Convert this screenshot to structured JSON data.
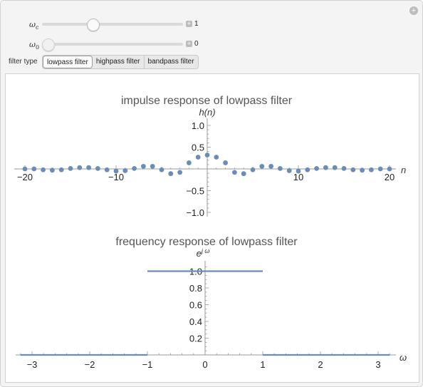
{
  "controls": {
    "omega_c": {
      "label": "ω",
      "sub": "c",
      "value": "1",
      "fraction": 0.36
    },
    "omega_0": {
      "label": "ω",
      "sub": "0",
      "value": "0",
      "fraction": 0.0
    },
    "filter_type_label": "filter type",
    "filter_options": [
      "lowpass filter",
      "highpass filter",
      "bandpass filter"
    ],
    "selected_filter": "lowpass filter"
  },
  "chart_data": [
    {
      "type": "scatter",
      "title": "impulse response of lowpass filter",
      "ylabel": "h(n)",
      "xlabel": "n",
      "xlim": [
        -20,
        20
      ],
      "ylim": [
        -1.0,
        1.0
      ],
      "xticks": [
        "−20",
        "−10",
        "10",
        "20"
      ],
      "yticks": [
        "1.0",
        "0.5",
        "−0.5",
        "−1.0"
      ],
      "color": "#6a8db8",
      "x": [
        -20,
        -19,
        -18,
        -17,
        -16,
        -15,
        -14,
        -13,
        -12,
        -11,
        -10,
        -9,
        -8,
        -7,
        -6,
        -5,
        -4,
        -3,
        -2,
        -1,
        0,
        1,
        2,
        3,
        4,
        5,
        6,
        7,
        8,
        9,
        10,
        11,
        12,
        13,
        14,
        15,
        16,
        17,
        18,
        19,
        20
      ],
      "y": [
        0.0,
        -0.0,
        -0.02,
        -0.03,
        -0.02,
        0.01,
        0.03,
        0.03,
        0.01,
        -0.02,
        -0.05,
        -0.04,
        0.01,
        0.06,
        0.06,
        -0.02,
        -0.11,
        -0.08,
        0.14,
        0.27,
        0.32,
        0.27,
        0.14,
        -0.08,
        -0.11,
        -0.02,
        0.06,
        0.06,
        0.01,
        -0.04,
        -0.05,
        -0.02,
        0.01,
        0.03,
        0.03,
        0.01,
        -0.02,
        -0.03,
        -0.02,
        -0.0,
        0.0
      ]
    },
    {
      "type": "line",
      "title": "frequency response of lowpass filter",
      "ylabel": "e^{jω}",
      "ylabel_base": "e",
      "ylabel_sup": "j ω",
      "xlabel": "ω",
      "xlim": [
        -3.2,
        3.2
      ],
      "ylim": [
        0,
        1.1
      ],
      "xticks": [
        "−3",
        "−2",
        "−1",
        "0",
        "1",
        "2",
        "3"
      ],
      "yticks": [
        "0.2",
        "0.4",
        "0.6",
        "0.8",
        "1.0"
      ],
      "color": "#6a8db8",
      "segments": [
        {
          "x": [
            -3.2,
            -1
          ],
          "y": [
            0,
            0
          ]
        },
        {
          "x": [
            -1,
            1
          ],
          "y": [
            1,
            1
          ]
        },
        {
          "x": [
            1,
            3.2
          ],
          "y": [
            0,
            0
          ]
        }
      ]
    }
  ]
}
